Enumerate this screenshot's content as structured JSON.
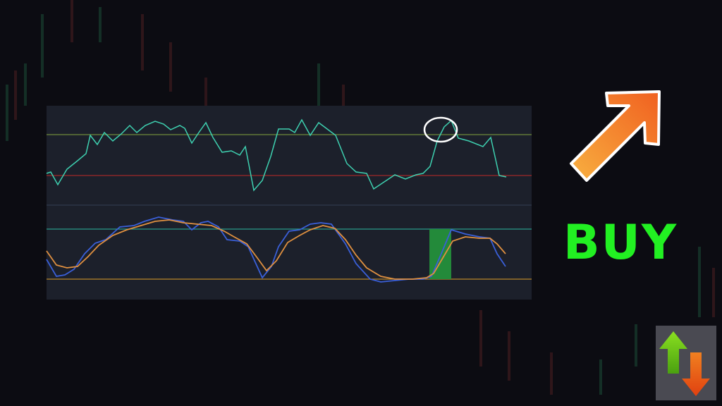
{
  "signal": {
    "label": "BUY"
  }
}
